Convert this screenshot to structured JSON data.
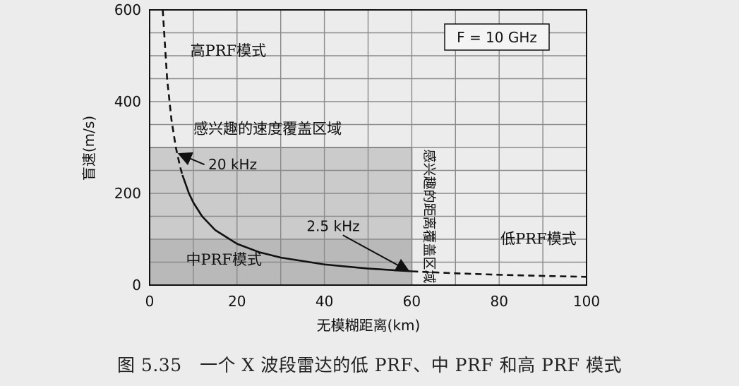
{
  "chart_data": {
    "type": "line",
    "xlabel": "无模糊距离(km)",
    "ylabel": "盲速(m/s)",
    "xlim": [
      0,
      100
    ],
    "ylim": [
      0,
      600
    ],
    "x_ticks": [
      "0",
      "20",
      "40",
      "60",
      "80",
      "100"
    ],
    "y_ticks": [
      "0",
      "200",
      "400",
      "600"
    ],
    "grid": true,
    "legend_box": "F = 10 GHz",
    "series": [
      {
        "style": "dashed",
        "x": [
          3,
          4,
          5,
          6,
          7,
          7.5
        ],
        "y": [
          600,
          450,
          360,
          300,
          257,
          240
        ]
      },
      {
        "style": "solid",
        "x": [
          7.5,
          9,
          10,
          12,
          15,
          20,
          25,
          30,
          40,
          50,
          60
        ],
        "y": [
          240,
          200,
          180,
          150,
          120,
          90,
          72,
          60,
          45,
          36,
          30
        ]
      },
      {
        "style": "dashed",
        "x": [
          60,
          70,
          80,
          90,
          100
        ],
        "y": [
          30,
          25.7,
          22.5,
          20,
          18
        ]
      }
    ],
    "shaded_regions": [
      {
        "x": [
          0,
          60
        ],
        "y": [
          0,
          300
        ]
      },
      {
        "x": [
          0,
          60
        ],
        "y": [
          0,
          100
        ]
      }
    ],
    "annotations": [
      {
        "text": "高PRF模式",
        "x": 18,
        "y": 500
      },
      {
        "text": "感兴趣的速度覆盖区域",
        "x": 27,
        "y": 330
      },
      {
        "text": "20 kHz",
        "x": 19,
        "y": 252,
        "arrow_to": [
          7,
          285
        ]
      },
      {
        "text": "2.5 kHz",
        "x": 42,
        "y": 118,
        "arrow_to": [
          59,
          32
        ]
      },
      {
        "text": "感兴趣的距离覆盖区域",
        "x": 63,
        "y": 150,
        "vertical": true
      },
      {
        "text": "低PRF模式",
        "x": 89,
        "y": 90
      },
      {
        "text": "中PRF模式",
        "x": 17,
        "y": 45
      }
    ]
  },
  "caption": "图 5.35　一个 X 波段雷达的低 PRF、中 PRF 和高 PRF 模式"
}
